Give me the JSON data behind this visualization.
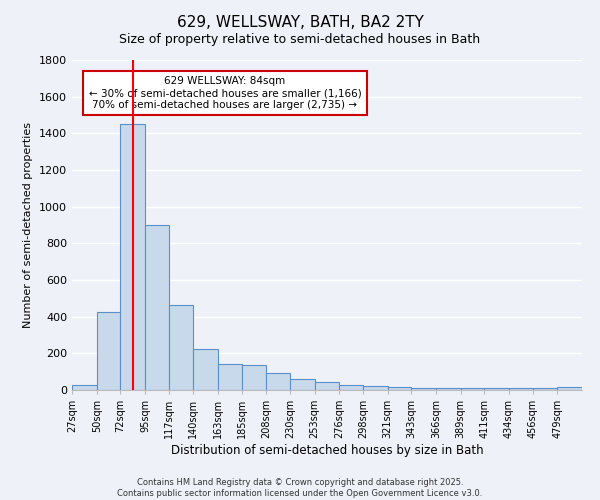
{
  "title": "629, WELLSWAY, BATH, BA2 2TY",
  "subtitle": "Size of property relative to semi-detached houses in Bath",
  "xlabel": "Distribution of semi-detached houses by size in Bath",
  "ylabel": "Number of semi-detached properties",
  "categories": [
    "27sqm",
    "50sqm",
    "72sqm",
    "95sqm",
    "117sqm",
    "140sqm",
    "163sqm",
    "185sqm",
    "208sqm",
    "230sqm",
    "253sqm",
    "276sqm",
    "298sqm",
    "321sqm",
    "343sqm",
    "366sqm",
    "389sqm",
    "411sqm",
    "434sqm",
    "456sqm",
    "479sqm"
  ],
  "values": [
    25,
    425,
    1450,
    900,
    465,
    225,
    140,
    135,
    95,
    60,
    45,
    30,
    20,
    15,
    12,
    10,
    10,
    12,
    10,
    12,
    15
  ],
  "bar_color": "#c9d9ec",
  "bar_edge_color": "#5b8fc9",
  "red_line_x": 84,
  "bin_edges": [
    27,
    50,
    72,
    95,
    117,
    140,
    163,
    185,
    208,
    230,
    253,
    276,
    298,
    321,
    343,
    366,
    389,
    411,
    434,
    456,
    479,
    502
  ],
  "annotation_title": "629 WELLSWAY: 84sqm",
  "annotation_line1": "← 30% of semi-detached houses are smaller (1,166)",
  "annotation_line2": "70% of semi-detached houses are larger (2,735) →",
  "ylim": [
    0,
    1800
  ],
  "yticks": [
    0,
    200,
    400,
    600,
    800,
    1000,
    1200,
    1400,
    1600,
    1800
  ],
  "footnote1": "Contains HM Land Registry data © Crown copyright and database right 2025.",
  "footnote2": "Contains public sector information licensed under the Open Government Licence v3.0.",
  "bg_color": "#eef2f8",
  "grid_color": "#ffffff",
  "title_fontsize": 11,
  "subtitle_fontsize": 9,
  "annotation_box_color": "#ffffff",
  "annotation_box_edge": "#cc0000"
}
